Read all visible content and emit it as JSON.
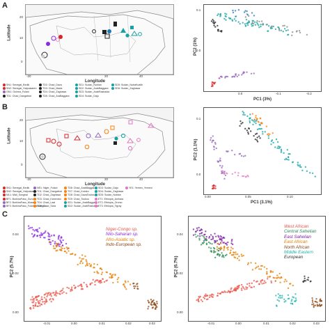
{
  "panels": {
    "A": {
      "letter": "A",
      "map": {
        "xlabel": "Longitude",
        "ylabel": "Latitude",
        "xticks": [
          "-20",
          "20",
          "40"
        ],
        "yticks": [
          "20",
          "10",
          "0"
        ]
      },
      "legend": [
        {
          "code": "SN1",
          "name": "Senegal_Bedik",
          "color": "#d62728"
        },
        {
          "code": "SN2",
          "name": "Senegal_Halpulaaren",
          "color": "#d62728"
        },
        {
          "code": "GN1",
          "name": "Guinea_Fulani",
          "color": "#9467bd"
        },
        {
          "code": "TD1",
          "name": "Chad_Dangaleat",
          "color": "#222222"
        },
        {
          "code": "TD2",
          "name": "Chad_Daza",
          "color": "#222222"
        },
        {
          "code": "TD3",
          "name": "Chad_Mada",
          "color": "#222222"
        },
        {
          "code": "TD4",
          "name": "Chad_Zaghawa",
          "color": "#222222"
        },
        {
          "code": "TD5",
          "name": "Chad_AraBaggara",
          "color": "#222222"
        },
        {
          "code": "SD1",
          "name": "Sudan_Nubian",
          "color": "#17a2a2"
        },
        {
          "code": "SD2",
          "name": "Sudan_ArabBaggara",
          "color": "#17a2a2"
        },
        {
          "code": "SD3",
          "name": "Sudan_ArabRashaida",
          "color": "#17a2a2"
        },
        {
          "code": "SD4",
          "name": "Sudan_Daju",
          "color": "#17a2a2"
        },
        {
          "code": "SD5",
          "name": "Sudan_NubaKoalib",
          "color": "#17a2a2"
        },
        {
          "code": "SD6",
          "name": "Sudan_Zaghawa",
          "color": "#17a2a2"
        }
      ],
      "pca": {
        "xlabel": "PC1 (3%)",
        "ylabel": "PC2 (1%)",
        "xticks": [
          "0.0",
          "-0.1",
          "-0.2"
        ],
        "yticks": [
          "0.1",
          "0.0"
        ]
      }
    },
    "B": {
      "letter": "B",
      "map": {
        "xlabel": "Longitude",
        "ylabel": "Latitude",
        "xticks": [
          "-20",
          "20",
          "40"
        ],
        "yticks": [
          "20",
          "10",
          "0"
        ]
      },
      "legend": [
        {
          "code": "SN1",
          "name": "Senegal_Bedik",
          "color": "#d62728"
        },
        {
          "code": "SN2",
          "name": "Senegal_Halpulaaren",
          "color": "#d62728"
        },
        {
          "code": "ML1",
          "name": "Mali_Songhai",
          "color": "#d62728"
        },
        {
          "code": "BF1",
          "name": "BurkinaFaso_Gurunsi",
          "color": "#d62728"
        },
        {
          "code": "BF2",
          "name": "BurkinaFaso_Mossi",
          "color": "#9467bd"
        },
        {
          "code": "BF3",
          "name": "BurkinaFaso_FulaniTindangou",
          "color": "#9467bd"
        },
        {
          "code": "NE1",
          "name": "Niger_Fulani",
          "color": "#9467bd"
        },
        {
          "code": "TD1",
          "name": "Chad_Dangaleat",
          "color": "#222222"
        },
        {
          "code": "TD2",
          "name": "Chad_Zaghawa",
          "color": "#222222"
        },
        {
          "code": "TD3",
          "name": "Chad_Kanembu",
          "color": "#ff7f0e"
        },
        {
          "code": "TD4",
          "name": "Chad_Laal",
          "color": "#ff7f0e"
        },
        {
          "code": "TD5",
          "name": "Chad_Sara",
          "color": "#ff7f0e"
        },
        {
          "code": "TD6",
          "name": "Chad_ArabBaggara",
          "color": "#ff7f0e"
        },
        {
          "code": "TD7",
          "name": "Chad_Kotoko",
          "color": "#ff7f0e"
        },
        {
          "code": "TD8",
          "name": "Chad_DazaToubou",
          "color": "#ff7f0e"
        },
        {
          "code": "TD9",
          "name": "Chad_Toubou",
          "color": "#ff7f0e"
        },
        {
          "code": "SD1",
          "name": "Sudan_ArabBaggara",
          "color": "#17a2a2"
        },
        {
          "code": "SD2",
          "name": "Sudan_ArabRashaida",
          "color": "#17a2a2"
        },
        {
          "code": "SD3",
          "name": "Sudan_Daju",
          "color": "#17a2a2"
        },
        {
          "code": "SD4",
          "name": "Sudan_Zaghawa",
          "color": "#17a2a2"
        },
        {
          "code": "SD5",
          "name": "Sudan_Nubian",
          "color": "#17a2a2"
        },
        {
          "code": "ET1",
          "name": "Ethiopia_Amhara",
          "color": "#e377c2"
        },
        {
          "code": "ET2",
          "name": "Ethiopia_Oromo",
          "color": "#e377c2"
        },
        {
          "code": "ET3",
          "name": "Ethiopia_Tigray",
          "color": "#e377c2"
        },
        {
          "code": "YE1",
          "name": "Yemen_Yemeni",
          "color": "#e377c2"
        }
      ],
      "pca": {
        "xlabel": "PC1 (3.1%)",
        "ylabel": "PC2 (1.1%)",
        "xticks": [
          "0.00",
          "0.05",
          "0.10"
        ],
        "yticks": [
          "0.1",
          "0.0"
        ]
      }
    },
    "C": {
      "letter": "C",
      "left": {
        "ylabel": "PC2 (5.7%)",
        "yticks": [
          "0.04",
          "0.02",
          "0.00"
        ],
        "xticks": [
          "-0.01",
          "0.00",
          "0.01",
          "0.02",
          "0.03"
        ],
        "groups": [
          {
            "label": "Niger-Congo sp.",
            "color": "#e8554a"
          },
          {
            "label": "Nilo-Saharan sp.",
            "color": "#8a2be2"
          },
          {
            "label": "Afro-Asiatic sp.",
            "color": "#e67e00"
          },
          {
            "label": "Indo-European sp.",
            "color": "#8b4513"
          }
        ]
      },
      "right": {
        "ylabel": "PC2 (6.7%)",
        "yticks": [
          "0.04",
          "0.02",
          "0.00"
        ],
        "xticks": [
          "-0.01",
          "0.00",
          "0.01",
          "0.02",
          "0.03"
        ],
        "groups": [
          {
            "label": "West African",
            "color": "#e8554a"
          },
          {
            "label": "Central Sahelian",
            "color": "#2e8b57"
          },
          {
            "label": "East Sahelian",
            "color": "#7b1fa2"
          },
          {
            "label": "East African",
            "color": "#e67e00"
          },
          {
            "label": "North African",
            "color": "#8b4513"
          },
          {
            "label": "Middle Eastern",
            "color": "#20b2aa"
          },
          {
            "label": "European",
            "color": "#333333"
          }
        ]
      }
    }
  }
}
